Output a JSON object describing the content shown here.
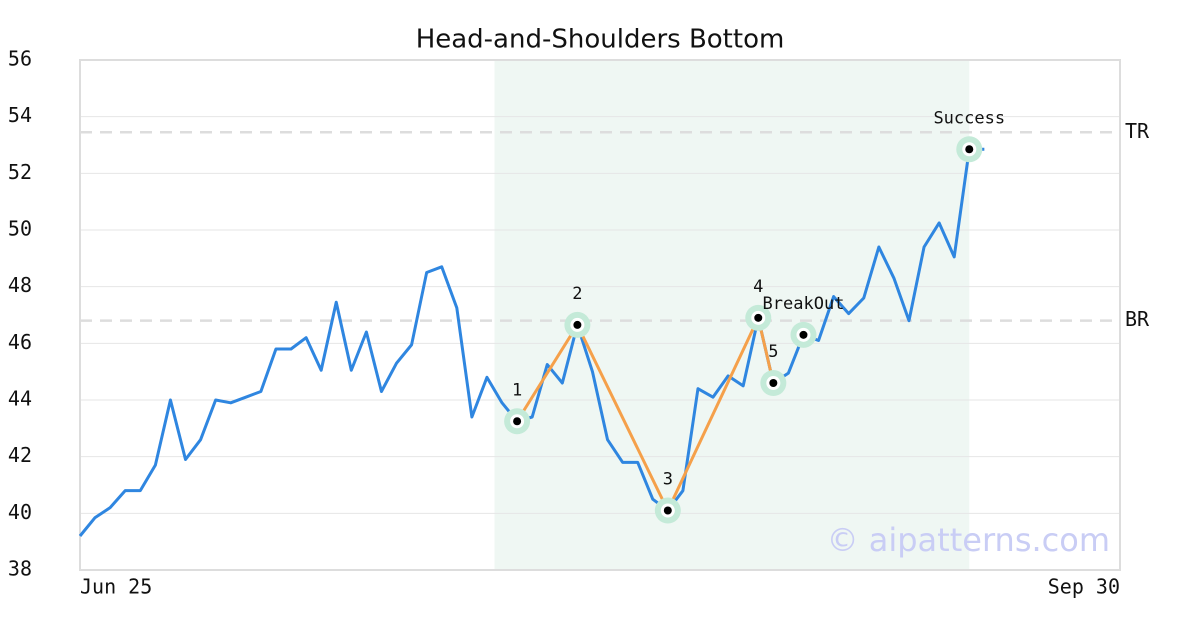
{
  "chart_data": {
    "type": "line",
    "title": "Head-and-Shoulders Bottom",
    "values": [
      39.2,
      39.85,
      40.2,
      40.8,
      40.8,
      41.7,
      44.0,
      41.9,
      42.6,
      44.0,
      43.9,
      44.1,
      44.3,
      45.8,
      45.8,
      46.2,
      45.05,
      47.45,
      45.05,
      46.4,
      44.3,
      45.3,
      45.95,
      48.5,
      48.7,
      47.25,
      43.4,
      44.8,
      43.9,
      43.25,
      43.4,
      45.25,
      44.6,
      46.65,
      45.0,
      42.6,
      41.8,
      41.8,
      40.5,
      40.1,
      40.8,
      44.4,
      44.1,
      44.85,
      44.5,
      46.9,
      44.6,
      44.95,
      46.3,
      46.1,
      47.65,
      47.05,
      47.6,
      49.4,
      48.3,
      46.8,
      49.4,
      50.25,
      49.05,
      52.85,
      52.85
    ],
    "color": "#2f86e0",
    "xlim": [
      0,
      69
    ],
    "xticks": [
      {
        "value": 0,
        "label": "Jun 25"
      },
      {
        "value": 69,
        "label": "Sep 30"
      }
    ],
    "ylim": [
      38,
      56
    ],
    "yticks": [
      38,
      40,
      42,
      44,
      46,
      48,
      50,
      52,
      54,
      56
    ],
    "grid": true,
    "pattern_span": [
      27.5,
      59
    ],
    "pattern_span_color": "#eff7f3",
    "markers": [
      {
        "label": "1",
        "index": 29
      },
      {
        "label": "2",
        "index": 33
      },
      {
        "label": "3",
        "index": 39
      },
      {
        "label": "4",
        "index": 45
      },
      {
        "label": "5",
        "index": 46
      },
      {
        "label": "BreakOut",
        "index": 48
      },
      {
        "label": "Success",
        "index": 59
      }
    ],
    "pattern_line_color": "#f5a04a",
    "pattern_line_markers": 5,
    "levels": [
      {
        "label": "TR",
        "value": 53.45
      },
      {
        "label": "BR",
        "value": 46.8
      }
    ],
    "watermark": "© aipatterns.com"
  }
}
